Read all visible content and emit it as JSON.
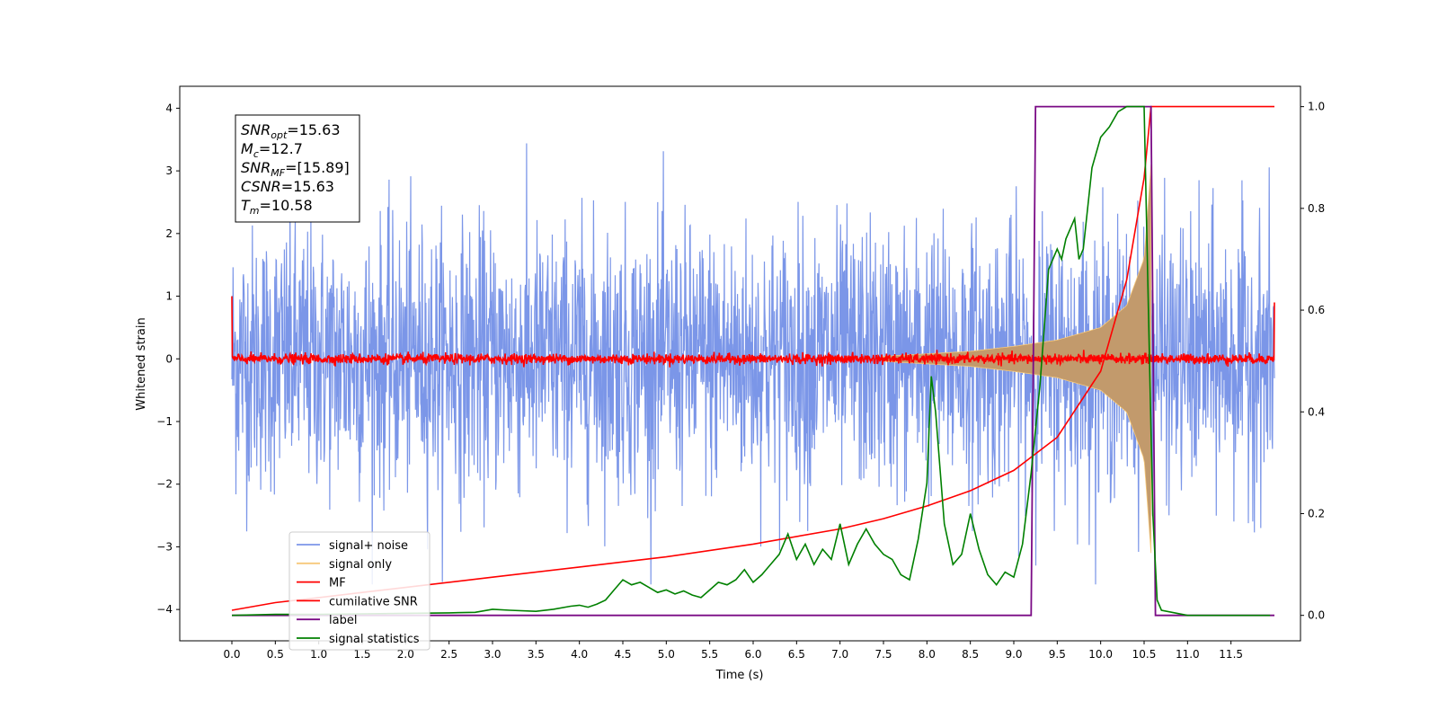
{
  "chart_data": {
    "type": "line",
    "title": "",
    "xlabel": "Time (s)",
    "ylabel": "Whitened strain",
    "y2label": "",
    "xlim": [
      -0.6,
      12.3
    ],
    "ylim": [
      -4.5,
      4.35
    ],
    "y2lim": [
      -0.05,
      1.04
    ],
    "x_ticks": [
      "0.0",
      "0.5",
      "1.0",
      "1.5",
      "2.0",
      "2.5",
      "3.0",
      "3.5",
      "4.0",
      "4.5",
      "5.0",
      "5.5",
      "6.0",
      "6.5",
      "7.0",
      "7.5",
      "8.0",
      "8.5",
      "9.0",
      "9.5",
      "10.0",
      "10.5",
      "11.0",
      "11.5"
    ],
    "y_ticks": [
      "4",
      "3",
      "2",
      "1",
      "0",
      "−1",
      "−2",
      "−3",
      "−4"
    ],
    "y2_ticks": [
      "1.0",
      "0.8",
      "0.6",
      "0.4",
      "0.2",
      "0.0"
    ],
    "grid": false,
    "legend_position": "lower-left",
    "annotation": {
      "lines": [
        {
          "sym": "SNR",
          "sub": "opt",
          "value": "=15.63"
        },
        {
          "sym": "M",
          "sub": "c",
          "value": "=12.7"
        },
        {
          "sym": "SNR",
          "sub": "MF",
          "value": "=[15.89]"
        },
        {
          "sym": "CSNR",
          "sub": "",
          "value": "=15.63"
        },
        {
          "sym": "T",
          "sub": "m",
          "value": "=10.58"
        }
      ]
    },
    "series": [
      {
        "name": "signal+ noise",
        "color": "#7b96e8",
        "axis": "left",
        "style": "dense-noise",
        "x_range": [
          0.0,
          12.0
        ],
        "amplitude_std": 1.0,
        "peak_max": 3.95,
        "peak_min": -3.6
      },
      {
        "name": "signal only",
        "color": "#f7c97a",
        "axis": "left",
        "style": "chirp-envelope",
        "x_range": [
          7.5,
          10.6
        ],
        "envelope": {
          "x": [
            7.5,
            8.0,
            8.5,
            9.0,
            9.5,
            10.0,
            10.3,
            10.5,
            10.58
          ],
          "y": [
            0.04,
            0.08,
            0.12,
            0.2,
            0.3,
            0.5,
            0.85,
            1.6,
            3.1
          ]
        }
      },
      {
        "name": "MF",
        "color": "#ff0000",
        "axis": "left",
        "style": "dense-noise",
        "x_range": [
          0.0,
          12.0
        ],
        "amplitude_std": 0.04,
        "start_value": 1.0,
        "end_value": 0.9
      },
      {
        "name": "cumilative SNR",
        "color": "#ff0000",
        "axis": "right",
        "x": [
          0.0,
          0.5,
          1.0,
          1.5,
          2.0,
          3.0,
          4.0,
          5.0,
          6.0,
          7.0,
          7.5,
          8.0,
          8.5,
          9.0,
          9.5,
          10.0,
          10.3,
          10.5,
          10.58,
          12.0
        ],
        "y": [
          0.01,
          0.025,
          0.035,
          0.045,
          0.055,
          0.075,
          0.095,
          0.115,
          0.14,
          0.17,
          0.19,
          0.215,
          0.245,
          0.285,
          0.35,
          0.48,
          0.66,
          0.86,
          1.0,
          1.0
        ]
      },
      {
        "name": "label",
        "color": "#7a0a85",
        "axis": "right",
        "x": [
          0.0,
          9.2,
          9.25,
          10.58,
          10.63,
          12.0
        ],
        "y": [
          0.0,
          0.0,
          1.0,
          1.0,
          0.0,
          0.0
        ]
      },
      {
        "name": "signal statistics",
        "color": "#008000",
        "axis": "right",
        "x": [
          0.0,
          0.5,
          1.0,
          1.5,
          2.0,
          2.5,
          2.8,
          3.0,
          3.2,
          3.5,
          3.7,
          3.9,
          4.0,
          4.1,
          4.2,
          4.3,
          4.4,
          4.5,
          4.6,
          4.7,
          4.8,
          4.9,
          5.0,
          5.1,
          5.2,
          5.3,
          5.4,
          5.5,
          5.6,
          5.7,
          5.8,
          5.9,
          6.0,
          6.1,
          6.2,
          6.3,
          6.4,
          6.5,
          6.6,
          6.7,
          6.8,
          6.9,
          7.0,
          7.1,
          7.2,
          7.3,
          7.4,
          7.5,
          7.6,
          7.7,
          7.8,
          7.9,
          8.0,
          8.05,
          8.1,
          8.2,
          8.3,
          8.4,
          8.5,
          8.6,
          8.7,
          8.8,
          8.9,
          9.0,
          9.1,
          9.2,
          9.3,
          9.4,
          9.5,
          9.55,
          9.6,
          9.7,
          9.75,
          9.8,
          9.9,
          10.0,
          10.1,
          10.2,
          10.3,
          10.4,
          10.5,
          10.55,
          10.6,
          10.65,
          10.7,
          11.0,
          11.5,
          11.95
        ],
        "y": [
          0.0,
          0.002,
          0.002,
          0.003,
          0.004,
          0.005,
          0.006,
          0.012,
          0.01,
          0.008,
          0.012,
          0.018,
          0.02,
          0.016,
          0.022,
          0.03,
          0.05,
          0.07,
          0.06,
          0.065,
          0.055,
          0.045,
          0.05,
          0.042,
          0.048,
          0.04,
          0.035,
          0.05,
          0.065,
          0.06,
          0.07,
          0.09,
          0.065,
          0.08,
          0.1,
          0.12,
          0.16,
          0.11,
          0.14,
          0.1,
          0.13,
          0.11,
          0.18,
          0.1,
          0.14,
          0.17,
          0.14,
          0.12,
          0.11,
          0.08,
          0.07,
          0.15,
          0.26,
          0.47,
          0.4,
          0.18,
          0.1,
          0.12,
          0.2,
          0.13,
          0.08,
          0.06,
          0.085,
          0.075,
          0.14,
          0.28,
          0.45,
          0.68,
          0.72,
          0.7,
          0.74,
          0.78,
          0.7,
          0.72,
          0.88,
          0.94,
          0.96,
          0.99,
          1.0,
          1.0,
          1.0,
          0.6,
          0.2,
          0.03,
          0.01,
          0.0,
          0.0,
          0.0
        ]
      }
    ]
  }
}
